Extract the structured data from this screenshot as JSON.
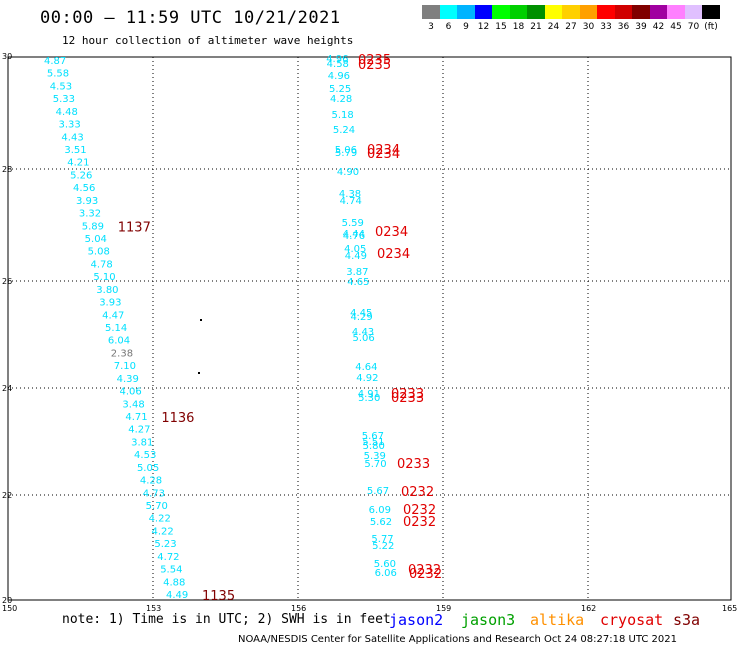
{
  "header": {
    "title": "00:00 – 11:59 UTC 10/21/2021",
    "subtitle": "12 hour collection of altimeter wave heights"
  },
  "colorbar": {
    "colors": [
      "#7f7f7f",
      "#00ffff",
      "#00b4ff",
      "#0000ff",
      "#00ff00",
      "#00d000",
      "#009000",
      "#ffff00",
      "#ffd000",
      "#ffa000",
      "#ff0000",
      "#d00000",
      "#800000",
      "#a000a0",
      "#ff80ff",
      "#e0c0ff",
      "#000000"
    ],
    "labels": [
      "3",
      "6",
      "9",
      "12",
      "15",
      "18",
      "21",
      "24",
      "27",
      "30",
      "33",
      "36",
      "39",
      "42",
      "45",
      "70",
      "(ft)"
    ]
  },
  "axes": {
    "lat_labels": [
      "30",
      "28",
      "26",
      "24",
      "22",
      "20"
    ],
    "lon_labels": [
      "150",
      "153",
      "156",
      "159",
      "162",
      "165"
    ]
  },
  "colors": {
    "swh": "#00e0ff",
    "swh_gray": "#777777",
    "time_dark": "#800000",
    "time_red": "#e00000",
    "jason2": "#0000ff",
    "jason3": "#00a000",
    "altika": "#ff9000",
    "cryosat": "#e00000",
    "s3a": "#800000"
  },
  "tracks": [
    {
      "name": "west-track",
      "swh": [
        "4.87",
        "5.58",
        "4.53",
        "5.33",
        "4.48",
        "3.33",
        "4.43",
        "3.51",
        "4.21",
        "5.26",
        "4.56",
        "3.93",
        "3.32",
        "5.89",
        "5.04",
        "5.08",
        "4.78",
        "5.10",
        "3.80",
        "3.93",
        "4.47",
        "5.14",
        "6.04",
        "2.38",
        "7.10",
        "4.39",
        "4.06",
        "3.48",
        "4.71",
        "4.27",
        "3.81",
        "4.53",
        "5.05",
        "4.28",
        "4.73",
        "5.70",
        "4.22",
        "4.22",
        "5.23",
        "4.72",
        "5.54",
        "4.88",
        "4.49"
      ],
      "times": [
        {
          "t": "1137",
          "idx": 13
        },
        {
          "t": "1136",
          "idx": 28
        },
        {
          "t": "1135",
          "idx": 42
        }
      ]
    },
    {
      "name": "east-track",
      "swh": [
        "4.96",
        "4.58",
        "4.96",
        "5.25",
        "4.28",
        "5.18",
        "5.24",
        "5.06",
        "5.79",
        "4.90",
        "4.38",
        "4.74",
        "5.59",
        "4.44",
        "4.76",
        "4.05",
        "4.49",
        "3.87",
        "4.65",
        "4.45",
        "4.29",
        "4.43",
        "5.06",
        "4.64",
        "4.92",
        "4.91",
        "5.30",
        "5.67",
        "5.51",
        "5.80",
        "5.39",
        "5.70",
        "5.67",
        "6.09",
        "5.62",
        "5.77",
        "5.22",
        "5.60",
        "6.06"
      ],
      "times": [
        {
          "t": "0235"
        },
        {
          "t": "0235"
        },
        {
          "t": "0234"
        },
        {
          "t": "0234"
        },
        {
          "t": "0234"
        },
        {
          "t": "0234"
        },
        {
          "t": "0233"
        },
        {
          "t": "0233"
        },
        {
          "t": "0233"
        },
        {
          "t": "0232"
        },
        {
          "t": "0232"
        },
        {
          "t": "0232"
        },
        {
          "t": "0232"
        },
        {
          "t": "0232"
        }
      ]
    }
  ],
  "footer": {
    "note": "note:  1) Time is in UTC;  2) SWH is in feet",
    "credit": "NOAA/NESDIS Center for Satellite Applications and Research    Oct 24 08:27:18 UTC 2021",
    "satellites": [
      "jason2",
      "jason3",
      "altika",
      "cryosat",
      "s3a"
    ]
  }
}
